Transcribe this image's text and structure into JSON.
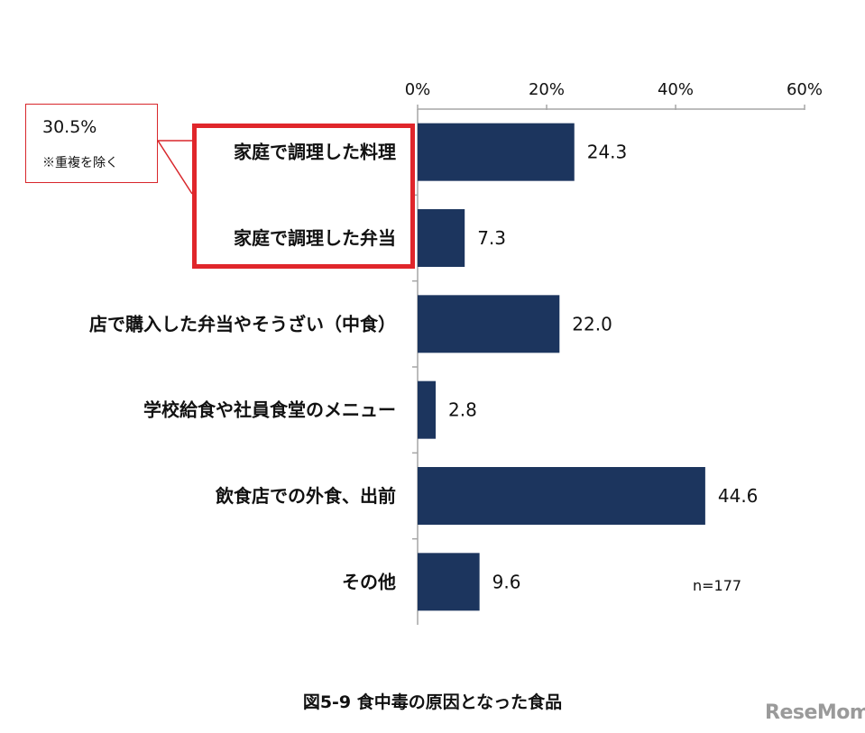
{
  "chart_data": {
    "type": "bar",
    "orientation": "horizontal",
    "categories": [
      "家庭で調理した料理",
      "家庭で調理した弁当",
      "店で購入した弁当やそうざい（中食）",
      "学校給食や社員食堂のメニュー",
      "飲食店での外食、出前",
      "その他"
    ],
    "values": [
      24.3,
      7.3,
      22.0,
      2.8,
      44.6,
      9.6
    ],
    "value_labels": [
      "24.3",
      "7.3",
      "22.0",
      "2.8",
      "44.6",
      "9.6"
    ],
    "xlim": [
      0,
      60
    ],
    "xticks": [
      "0%",
      "20%",
      "40%",
      "60%"
    ],
    "xtick_values": [
      0,
      20,
      40,
      60
    ],
    "axis_position": "top",
    "grid": false,
    "bar_color": "#1c355e",
    "note": "n=177",
    "callout": {
      "value": "30.5%",
      "text": "※重複を除く",
      "color": "#e0262b"
    },
    "caption": "図5-9  食中毒の原因となった食品"
  },
  "watermark": "ReseMom"
}
